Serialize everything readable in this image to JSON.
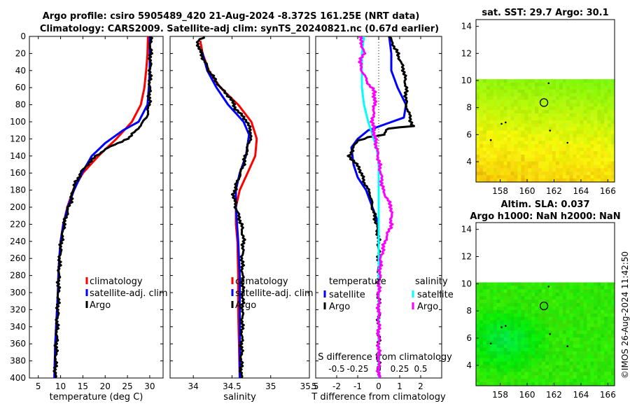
{
  "titles": {
    "line1": "Argo profile: csiro 5905489_420 21-Aug-2024 -8.372S 161.25E (NRT data)",
    "line2": "Climatology: CARS2009. Satellite-adj clim: synTS_20240821.nc (0.67d earlier)",
    "map1": "sat. SST: 29.7 Argo: 30.1",
    "map2a": "Altim. SLA: 0.037",
    "map2b": "Argo h1000: NaN h2000: NaN"
  },
  "timestamp": "©IMOS 26-Aug-2024 11:42:50",
  "chart_data": [
    {
      "type": "line",
      "name": "temperature",
      "xlabel": "temperature (deg C)",
      "xlim": [
        3,
        33
      ],
      "xticks": [
        5,
        10,
        15,
        20,
        25,
        30
      ],
      "ylim": [
        0,
        400
      ],
      "yticks": [
        0,
        20,
        40,
        60,
        80,
        100,
        120,
        140,
        160,
        180,
        200,
        220,
        240,
        260,
        280,
        300,
        320,
        340,
        360,
        380,
        400
      ],
      "legend": [
        "climatology",
        "satellite-adj. clim",
        "Argo"
      ],
      "series": [
        {
          "name": "climatology",
          "color": "#ff0000",
          "points": [
            [
              29.6,
              0
            ],
            [
              29.5,
              20
            ],
            [
              29.2,
              40
            ],
            [
              28.8,
              60
            ],
            [
              28.0,
              80
            ],
            [
              26.0,
              100
            ],
            [
              22.5,
              120
            ],
            [
              18.5,
              140
            ],
            [
              15.0,
              160
            ],
            [
              12.8,
              180
            ],
            [
              11.5,
              200
            ],
            [
              10.6,
              220
            ],
            [
              10.0,
              240
            ],
            [
              9.7,
              260
            ],
            [
              9.5,
              280
            ],
            [
              9.4,
              300
            ],
            [
              9.2,
              320
            ],
            [
              9.0,
              340
            ],
            [
              8.8,
              360
            ],
            [
              8.7,
              380
            ],
            [
              8.6,
              400
            ]
          ]
        },
        {
          "name": "satellite-adj. clim",
          "color": "#0000ff",
          "points": [
            [
              30.0,
              0
            ],
            [
              30.0,
              20
            ],
            [
              30.0,
              40
            ],
            [
              29.8,
              60
            ],
            [
              29.5,
              80
            ],
            [
              27.5,
              100
            ],
            [
              24.0,
              110
            ],
            [
              20.0,
              125
            ],
            [
              17.0,
              140
            ],
            [
              14.8,
              160
            ],
            [
              13.0,
              180
            ],
            [
              11.6,
              200
            ],
            [
              10.6,
              220
            ],
            [
              10.0,
              240
            ],
            [
              9.7,
              260
            ],
            [
              9.5,
              280
            ],
            [
              9.4,
              300
            ],
            [
              9.2,
              320
            ],
            [
              9.0,
              340
            ],
            [
              8.8,
              360
            ],
            [
              8.7,
              380
            ],
            [
              8.6,
              400
            ]
          ]
        },
        {
          "name": "Argo",
          "color": "#000000",
          "points": [
            [
              30.2,
              0
            ],
            [
              30.2,
              20
            ],
            [
              30.1,
              40
            ],
            [
              30.0,
              60
            ],
            [
              29.9,
              80
            ],
            [
              29.3,
              95
            ],
            [
              27.0,
              110
            ],
            [
              25.5,
              118
            ],
            [
              23.0,
              125
            ],
            [
              20.0,
              132
            ],
            [
              18.0,
              140
            ],
            [
              16.0,
              150
            ],
            [
              14.5,
              160
            ],
            [
              13.5,
              170
            ],
            [
              12.7,
              180
            ],
            [
              12.5,
              190
            ],
            [
              11.8,
              200
            ],
            [
              10.8,
              220
            ],
            [
              10.2,
              240
            ],
            [
              9.8,
              260
            ],
            [
              9.6,
              280
            ],
            [
              9.5,
              300
            ],
            [
              9.4,
              320
            ],
            [
              9.2,
              340
            ],
            [
              9.1,
              360
            ],
            [
              8.9,
              380
            ],
            [
              8.8,
              400
            ]
          ]
        }
      ]
    },
    {
      "type": "line",
      "name": "salinity",
      "xlabel": "salinity",
      "xlim": [
        33.7,
        35.5
      ],
      "xticks": [
        34,
        34.5,
        35,
        35.5
      ],
      "xticklabels": [
        "34",
        "34.5",
        "35",
        "35.5"
      ],
      "ylim": [
        0,
        400
      ],
      "legend": [
        "climatology",
        "satellite-adj. clim",
        "Argo"
      ],
      "series": [
        {
          "name": "climatology",
          "color": "#ff0000",
          "points": [
            [
              34.09,
              5
            ],
            [
              34.12,
              20
            ],
            [
              34.2,
              40
            ],
            [
              34.35,
              60
            ],
            [
              34.58,
              80
            ],
            [
              34.75,
              100
            ],
            [
              34.82,
              120
            ],
            [
              34.8,
              140
            ],
            [
              34.7,
              160
            ],
            [
              34.6,
              180
            ],
            [
              34.55,
              200
            ],
            [
              34.55,
              220
            ],
            [
              34.57,
              240
            ],
            [
              34.58,
              280
            ],
            [
              34.58,
              320
            ],
            [
              34.59,
              360
            ],
            [
              34.6,
              400
            ]
          ]
        },
        {
          "name": "satellite-adj. clim",
          "color": "#0000ff",
          "points": [
            [
              34.05,
              10
            ],
            [
              34.12,
              20
            ],
            [
              34.18,
              40
            ],
            [
              34.3,
              60
            ],
            [
              34.45,
              80
            ],
            [
              34.65,
              100
            ],
            [
              34.72,
              115
            ],
            [
              34.68,
              140
            ],
            [
              34.6,
              160
            ],
            [
              34.55,
              180
            ],
            [
              34.55,
              200
            ],
            [
              34.58,
              240
            ],
            [
              34.6,
              280
            ],
            [
              34.6,
              320
            ],
            [
              34.6,
              360
            ],
            [
              34.6,
              400
            ]
          ]
        },
        {
          "name": "Argo",
          "color": "#000000",
          "points": [
            [
              34.15,
              0
            ],
            [
              34.05,
              5
            ],
            [
              34.1,
              20
            ],
            [
              34.2,
              40
            ],
            [
              34.35,
              60
            ],
            [
              34.48,
              72
            ],
            [
              34.55,
              85
            ],
            [
              34.7,
              100
            ],
            [
              34.75,
              115
            ],
            [
              34.7,
              130
            ],
            [
              34.65,
              150
            ],
            [
              34.55,
              175
            ],
            [
              34.52,
              185
            ],
            [
              34.55,
              200
            ],
            [
              34.62,
              220
            ],
            [
              34.65,
              240
            ],
            [
              34.63,
              260
            ],
            [
              34.64,
              300
            ],
            [
              34.63,
              340
            ],
            [
              34.62,
              380
            ],
            [
              34.62,
              400
            ]
          ]
        }
      ]
    },
    {
      "type": "line",
      "name": "difference",
      "xlabel": "T difference from climatology",
      "xlabel_top": "S difference from climatology",
      "xlim": [
        -3,
        3
      ],
      "xticks": [
        -2,
        -1,
        0,
        1,
        2
      ],
      "xticklabels": [
        "-2",
        "-1",
        "0",
        "1",
        "2"
      ],
      "xticks_s": [
        -0.5,
        -0.25,
        0,
        0.25,
        0.5
      ],
      "xticklabels_s": [
        "-0.5",
        "-0.25",
        "0",
        "0.25",
        "0.5"
      ],
      "extra_tick_label": "5",
      "ylim": [
        0,
        400
      ],
      "legend_t_title": "temperature",
      "legend_s_title": "salinity",
      "legend": [
        "satellite",
        "Argo",
        "satellite",
        "Argo"
      ],
      "series": [
        {
          "name": "temperature satellite",
          "color": "#0000ff",
          "points": [
            [
              0.5,
              0
            ],
            [
              0.6,
              20
            ],
            [
              0.6,
              40
            ],
            [
              0.9,
              60
            ],
            [
              1.3,
              80
            ],
            [
              1.2,
              95
            ],
            [
              -0.5,
              110
            ],
            [
              -1.0,
              120
            ],
            [
              -1.3,
              130
            ],
            [
              -1.2,
              150
            ],
            [
              -1.0,
              165
            ],
            [
              -0.6,
              180
            ],
            [
              -0.3,
              200
            ],
            [
              0.0,
              220
            ],
            [
              0.0,
              240
            ],
            [
              0.0,
              400
            ]
          ]
        },
        {
          "name": "temperature Argo",
          "color": "#000000",
          "points": [
            [
              0.5,
              0
            ],
            [
              0.9,
              20
            ],
            [
              1.2,
              40
            ],
            [
              1.3,
              60
            ],
            [
              1.3,
              80
            ],
            [
              1.5,
              95
            ],
            [
              1.6,
              105
            ],
            [
              0.4,
              108
            ],
            [
              0.3,
              115
            ],
            [
              -0.5,
              118
            ],
            [
              -1.0,
              122
            ],
            [
              -1.2,
              130
            ],
            [
              -1.4,
              140
            ],
            [
              -0.9,
              155
            ],
            [
              -0.7,
              170
            ],
            [
              -0.4,
              185
            ],
            [
              -0.3,
              200
            ],
            [
              -0.1,
              220
            ],
            [
              0.0,
              240
            ],
            [
              0.0,
              400
            ]
          ]
        },
        {
          "name": "salinity satellite",
          "color": "#00ffff",
          "points": [
            [
              -0.7,
              0
            ],
            [
              -0.8,
              20
            ],
            [
              -0.8,
              40
            ],
            [
              -0.8,
              60
            ],
            [
              -0.7,
              80
            ],
            [
              -0.5,
              100
            ],
            [
              -0.3,
              115
            ],
            [
              -0.1,
              130
            ],
            [
              0.0,
              150
            ],
            [
              0.0,
              200
            ],
            [
              0.0,
              400
            ]
          ]
        },
        {
          "name": "salinity Argo",
          "color": "#ff00ff",
          "points": [
            [
              -0.9,
              0
            ],
            [
              -0.7,
              20
            ],
            [
              -0.9,
              30
            ],
            [
              -0.8,
              40
            ],
            [
              -0.5,
              55
            ],
            [
              -0.2,
              65
            ],
            [
              -0.2,
              80
            ],
            [
              -0.3,
              100
            ],
            [
              -0.2,
              115
            ],
            [
              -0.1,
              130
            ],
            [
              0.1,
              160
            ],
            [
              0.2,
              180
            ],
            [
              0.6,
              200
            ],
            [
              0.6,
              220
            ],
            [
              0.3,
              240
            ],
            [
              0.1,
              260
            ],
            [
              0.0,
              300
            ],
            [
              0.0,
              400
            ]
          ]
        }
      ]
    },
    {
      "type": "heatmap",
      "name": "sat SST map",
      "xticks": [
        158,
        160,
        162,
        164,
        166
      ],
      "yticks": [
        4,
        6,
        8,
        10,
        12,
        14
      ],
      "xlim": [
        156.2,
        166.5
      ],
      "ylim": [
        2.5,
        14.5
      ],
      "data_top": 10.1,
      "marker": [
        161.25,
        8.37
      ],
      "colors": [
        "#e8e800",
        "#b8f000",
        "#f0d020"
      ]
    },
    {
      "type": "heatmap",
      "name": "altimetry SLA map",
      "xticks": [
        158,
        160,
        162,
        164,
        166
      ],
      "yticks": [
        4,
        6,
        8,
        10,
        12,
        14
      ],
      "xlim": [
        156.2,
        166.5
      ],
      "ylim": [
        2.5,
        14.5
      ],
      "data_top": 10.1,
      "marker": [
        161.25,
        8.37
      ],
      "colors": [
        "#33dd00",
        "#55ee00",
        "#00c840"
      ]
    }
  ]
}
